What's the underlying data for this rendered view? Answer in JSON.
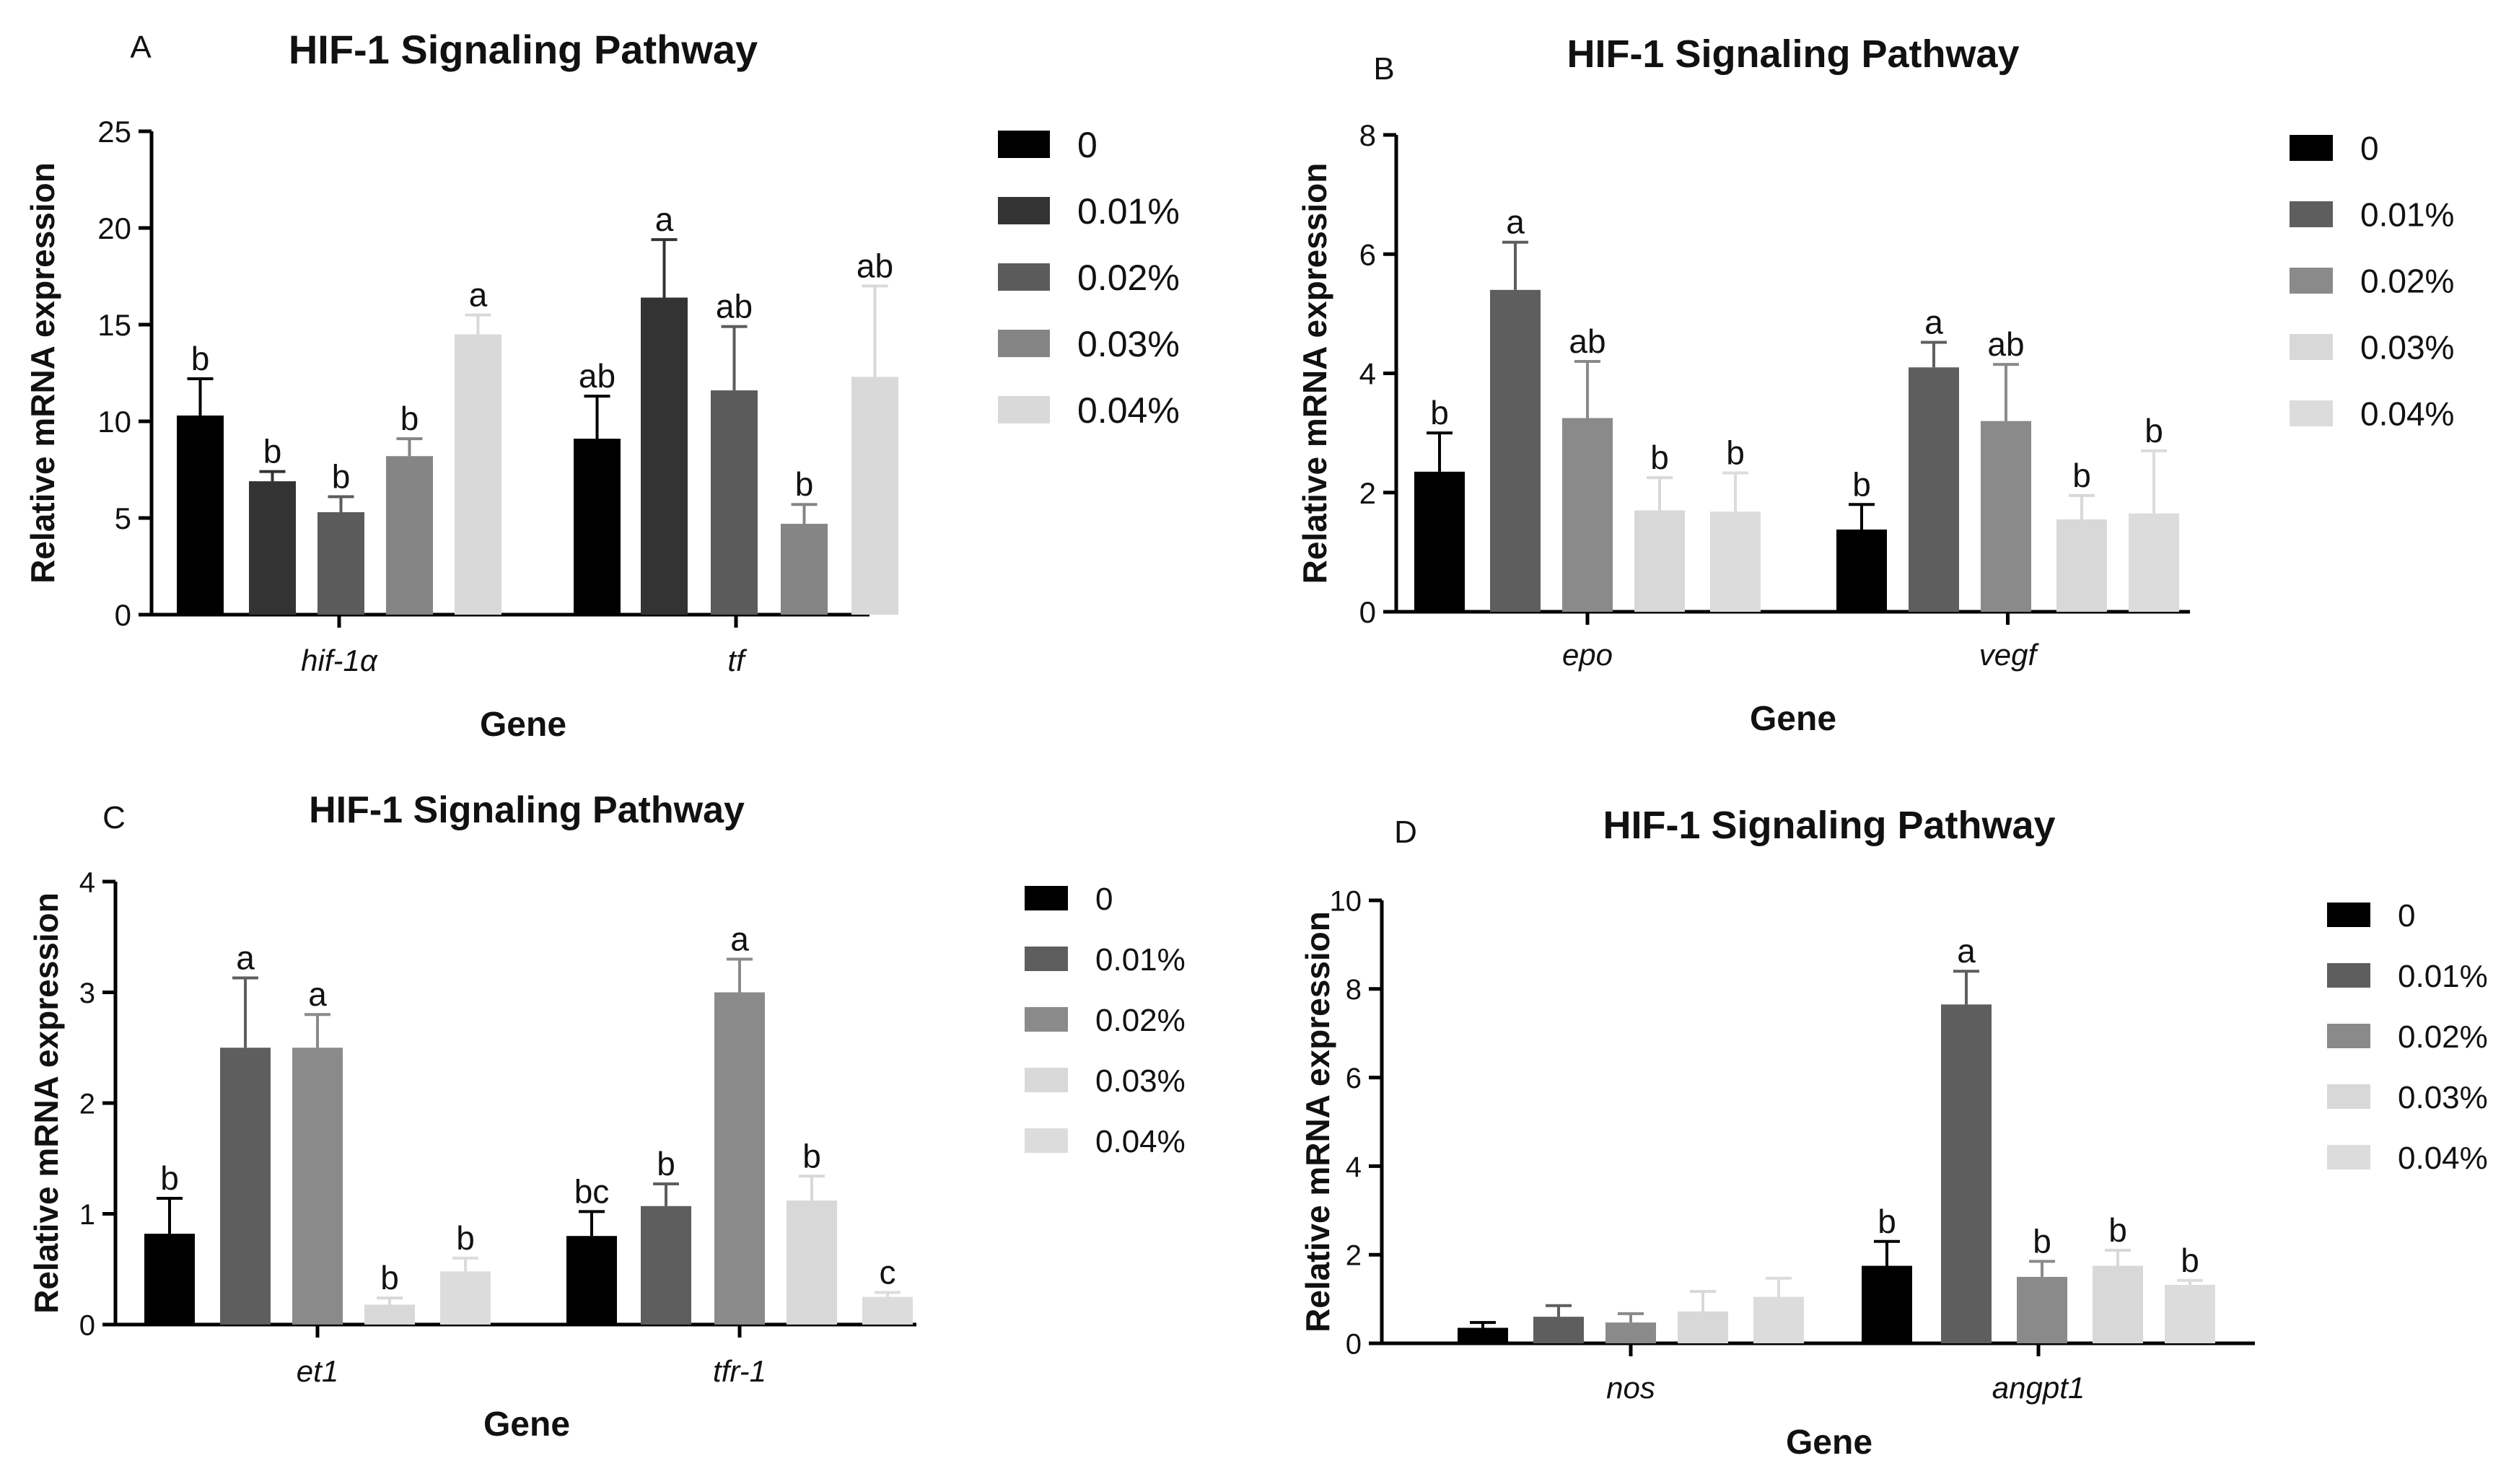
{
  "chart_data": [
    {
      "type": "bar",
      "panel_label": "A",
      "title": "HIF-1 Signaling Pathway",
      "xlabel": "Gene",
      "ylabel": "Relative mRNA expression",
      "ylim": [
        0,
        25
      ],
      "yticks": [
        "0",
        "5",
        "10",
        "15",
        "20",
        "25"
      ],
      "categories": [
        "hif-1α",
        "tf"
      ],
      "legend_position": "right",
      "series": [
        {
          "name": "0",
          "color": "#000000",
          "values": [
            10.3,
            9.1
          ],
          "errors": [
            1.9,
            2.2
          ],
          "letters": [
            "b",
            "ab"
          ]
        },
        {
          "name": "0.01%",
          "color": "#333333",
          "values": [
            6.9,
            16.4
          ],
          "errors": [
            0.5,
            3.0
          ],
          "letters": [
            "b",
            "a"
          ]
        },
        {
          "name": "0.02%",
          "color": "#5b5b5b",
          "values": [
            5.3,
            11.6
          ],
          "errors": [
            0.8,
            3.3
          ],
          "letters": [
            "b",
            "ab"
          ]
        },
        {
          "name": "0.03%",
          "color": "#858585",
          "values": [
            8.2,
            4.7
          ],
          "errors": [
            0.9,
            1.0
          ],
          "letters": [
            "b",
            "b"
          ]
        },
        {
          "name": "0.04%",
          "color": "#d9d9d9",
          "values": [
            14.5,
            12.3
          ],
          "errors": [
            1.0,
            4.7
          ],
          "letters": [
            "a",
            "ab"
          ]
        }
      ]
    },
    {
      "type": "bar",
      "panel_label": "B",
      "title": "HIF-1 Signaling Pathway",
      "xlabel": "Gene",
      "ylabel": "Relative mRNA expression",
      "ylim": [
        0,
        8
      ],
      "yticks": [
        "0",
        "2",
        "4",
        "6",
        "8"
      ],
      "categories": [
        "epo",
        "vegf"
      ],
      "legend_position": "right",
      "series": [
        {
          "name": "0",
          "color": "#000000",
          "values": [
            2.35,
            1.38
          ],
          "errors": [
            0.65,
            0.42
          ],
          "letters": [
            "b",
            "b"
          ]
        },
        {
          "name": "0.01%",
          "color": "#5e5e5e",
          "values": [
            5.4,
            4.1
          ],
          "errors": [
            0.8,
            0.42
          ],
          "letters": [
            "a",
            "a"
          ]
        },
        {
          "name": "0.02%",
          "color": "#8a8a8a",
          "values": [
            3.25,
            3.2
          ],
          "errors": [
            0.95,
            0.95
          ],
          "letters": [
            "ab",
            "ab"
          ]
        },
        {
          "name": "0.03%",
          "color": "#d8d8d8",
          "values": [
            1.7,
            1.55
          ],
          "errors": [
            0.55,
            0.4
          ],
          "letters": [
            "b",
            "b"
          ]
        },
        {
          "name": "0.04%",
          "color": "#dcdcdc",
          "values": [
            1.68,
            1.65
          ],
          "errors": [
            0.65,
            1.05
          ],
          "letters": [
            "b",
            "b"
          ]
        }
      ]
    },
    {
      "type": "bar",
      "panel_label": "C",
      "title": "HIF-1 Signaling Pathway",
      "xlabel": "Gene",
      "ylabel": "Relative mRNA expression",
      "ylim": [
        0,
        4
      ],
      "yticks": [
        "0",
        "1",
        "2",
        "3",
        "4"
      ],
      "categories": [
        "et1",
        "tfr-1"
      ],
      "legend_position": "right",
      "series": [
        {
          "name": "0",
          "color": "#000000",
          "values": [
            0.82,
            0.8
          ],
          "errors": [
            0.32,
            0.22
          ],
          "letters": [
            "b",
            "bc"
          ]
        },
        {
          "name": "0.01%",
          "color": "#5e5e5e",
          "values": [
            2.5,
            1.07
          ],
          "errors": [
            0.63,
            0.2
          ],
          "letters": [
            "a",
            "b"
          ]
        },
        {
          "name": "0.02%",
          "color": "#8a8a8a",
          "values": [
            2.5,
            3.0
          ],
          "errors": [
            0.3,
            0.3
          ],
          "letters": [
            "a",
            "a"
          ]
        },
        {
          "name": "0.03%",
          "color": "#d8d8d8",
          "values": [
            0.18,
            1.12
          ],
          "errors": [
            0.06,
            0.22
          ],
          "letters": [
            "b",
            "b"
          ]
        },
        {
          "name": "0.04%",
          "color": "#dcdcdc",
          "values": [
            0.48,
            0.25
          ],
          "errors": [
            0.12,
            0.04
          ],
          "letters": [
            "b",
            "c"
          ]
        }
      ]
    },
    {
      "type": "bar",
      "panel_label": "D",
      "title": "HIF-1 Signaling Pathway",
      "xlabel": "Gene",
      "ylabel": "Relative mRNA expression",
      "ylim": [
        0,
        10
      ],
      "yticks": [
        "0",
        "2",
        "4",
        "6",
        "8",
        "10"
      ],
      "categories": [
        "nos",
        "angpt1"
      ],
      "legend_position": "right",
      "series": [
        {
          "name": "0",
          "color": "#000000",
          "values": [
            0.35,
            1.75
          ],
          "errors": [
            0.12,
            0.55
          ],
          "letters": [
            "",
            "b"
          ]
        },
        {
          "name": "0.01%",
          "color": "#5e5e5e",
          "values": [
            0.6,
            7.65
          ],
          "errors": [
            0.25,
            0.75
          ],
          "letters": [
            "",
            "a"
          ]
        },
        {
          "name": "0.02%",
          "color": "#8a8a8a",
          "values": [
            0.47,
            1.5
          ],
          "errors": [
            0.2,
            0.35
          ],
          "letters": [
            "",
            "b"
          ]
        },
        {
          "name": "0.03%",
          "color": "#d8d8d8",
          "values": [
            0.72,
            1.75
          ],
          "errors": [
            0.45,
            0.35
          ],
          "letters": [
            "",
            "b"
          ]
        },
        {
          "name": "0.04%",
          "color": "#dcdcdc",
          "values": [
            1.05,
            1.32
          ],
          "errors": [
            0.42,
            0.1
          ],
          "letters": [
            "",
            "b"
          ]
        }
      ]
    }
  ]
}
